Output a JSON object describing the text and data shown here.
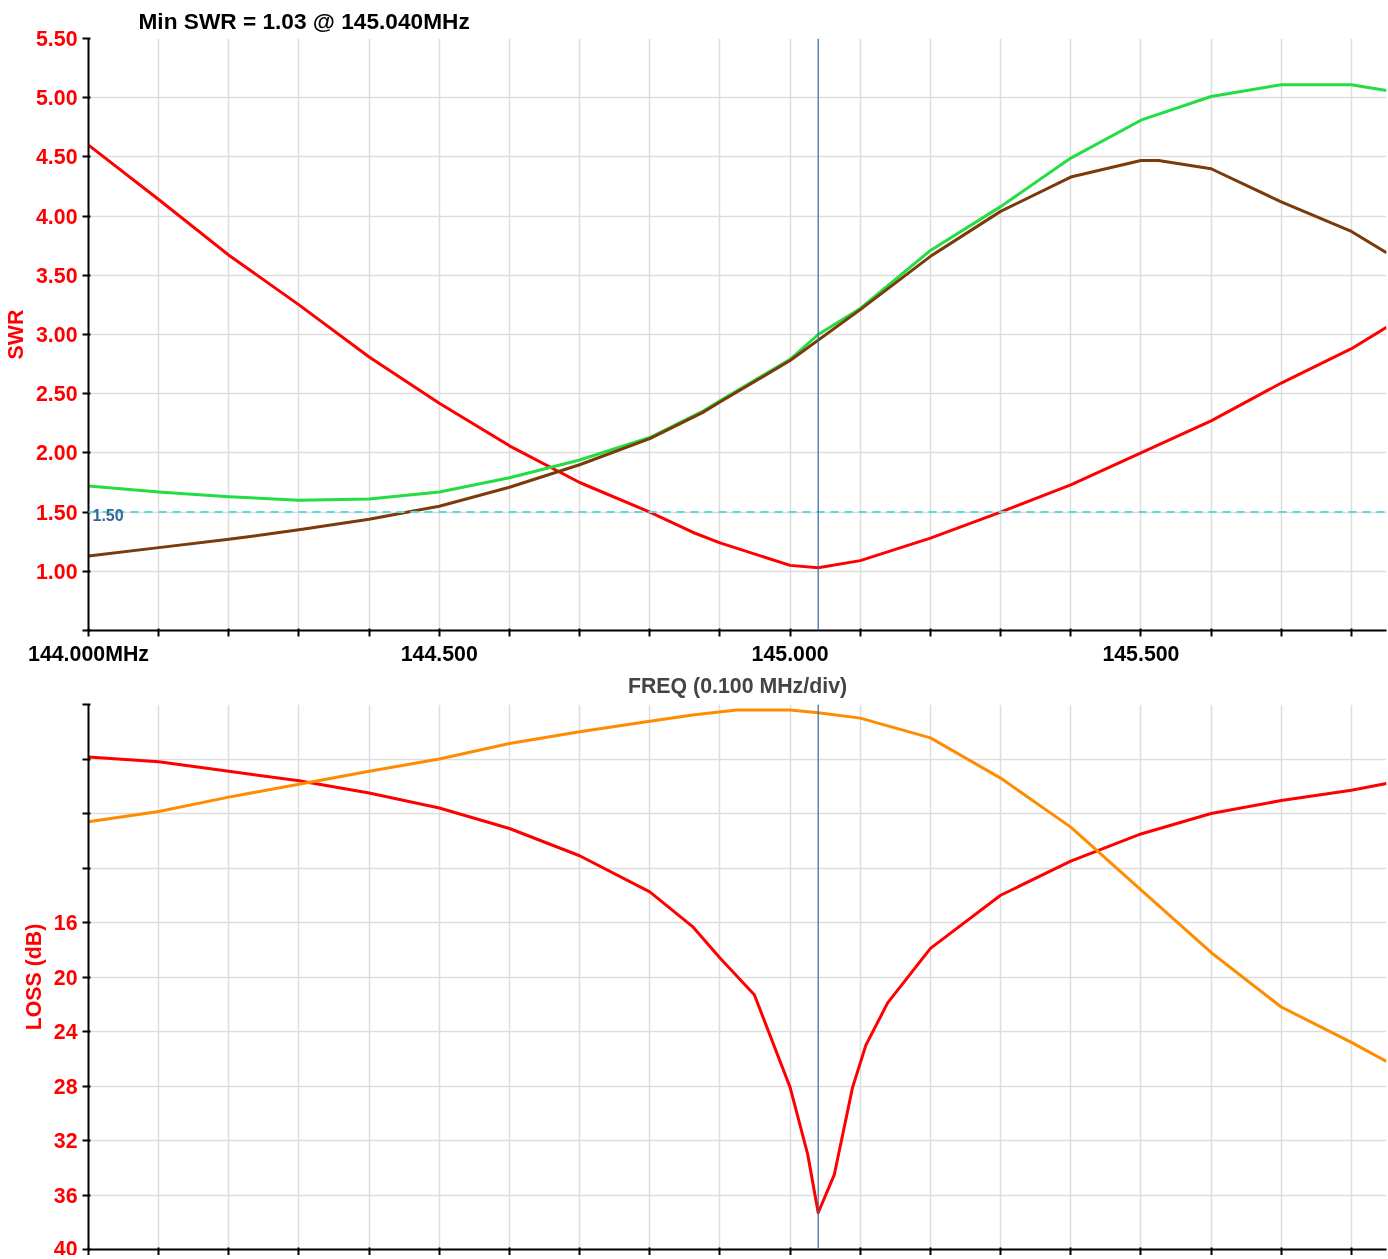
{
  "chart_data": [
    {
      "type": "line",
      "title": "Min SWR =   1.03 @ 145.040MHz",
      "ylabel": "SWR",
      "xlabel": "FREQ (0.100 MHz/div)",
      "xlim": [
        144.0,
        145.85
      ],
      "ylim": [
        0.5,
        5.5
      ],
      "xticks": [
        {
          "value": 144.0,
          "label": "144.000MHz"
        },
        {
          "value": 144.1,
          "label": null
        },
        {
          "value": 144.2,
          "label": null
        },
        {
          "value": 144.3,
          "label": null
        },
        {
          "value": 144.4,
          "label": null
        },
        {
          "value": 144.5,
          "label": "144.500"
        },
        {
          "value": 144.6,
          "label": null
        },
        {
          "value": 144.7,
          "label": null
        },
        {
          "value": 144.8,
          "label": null
        },
        {
          "value": 144.9,
          "label": null
        },
        {
          "value": 145.0,
          "label": "145.000"
        },
        {
          "value": 145.1,
          "label": null
        },
        {
          "value": 145.2,
          "label": null
        },
        {
          "value": 145.3,
          "label": null
        },
        {
          "value": 145.4,
          "label": null
        },
        {
          "value": 145.5,
          "label": "145.500"
        },
        {
          "value": 145.6,
          "label": null
        },
        {
          "value": 145.7,
          "label": null
        },
        {
          "value": 145.8,
          "label": null
        }
      ],
      "yticks": [
        {
          "value": 0.5,
          "label": null
        },
        {
          "value": 1.0,
          "label": "1.00"
        },
        {
          "value": 1.5,
          "label": "1.50"
        },
        {
          "value": 2.0,
          "label": "2.00"
        },
        {
          "value": 2.5,
          "label": "2.50"
        },
        {
          "value": 3.0,
          "label": "3.00"
        },
        {
          "value": 3.5,
          "label": "3.50"
        },
        {
          "value": 4.0,
          "label": "4.00"
        },
        {
          "value": 4.5,
          "label": "4.50"
        },
        {
          "value": 5.0,
          "label": "5.00"
        },
        {
          "value": 5.5,
          "label": "5.50"
        }
      ],
      "grid": true,
      "line_style": "solid",
      "marker": "none",
      "ref_lines": [
        {
          "axis": "y",
          "value": 1.5,
          "label": "1.50",
          "color": "#55dddd",
          "line_style": "dashed"
        },
        {
          "axis": "x",
          "value": 145.04,
          "label": null,
          "color": "#336699",
          "line_style": "solid"
        }
      ],
      "series": [
        {
          "color": "#ff0000",
          "x": [
            144.0,
            144.1,
            144.2,
            144.3,
            144.4,
            144.5,
            144.6,
            144.7,
            144.8,
            144.861,
            144.9,
            145.0,
            145.04,
            145.1,
            145.2,
            145.3,
            145.4,
            145.5,
            145.6,
            145.7,
            145.8,
            145.85
          ],
          "values": [
            4.6,
            4.14,
            3.67,
            3.25,
            2.81,
            2.42,
            2.06,
            1.75,
            1.5,
            1.33,
            1.24,
            1.05,
            1.03,
            1.09,
            1.28,
            1.5,
            1.73,
            2.0,
            2.27,
            2.59,
            2.88,
            3.06
          ]
        },
        {
          "color": "#22dd44",
          "x": [
            144.0,
            144.1,
            144.2,
            144.3,
            144.4,
            144.5,
            144.6,
            144.7,
            144.8,
            144.875,
            144.9,
            145.0,
            145.04,
            145.1,
            145.2,
            145.3,
            145.4,
            145.5,
            145.6,
            145.7,
            145.8,
            145.85
          ],
          "values": [
            1.72,
            1.67,
            1.63,
            1.6,
            1.61,
            1.67,
            1.79,
            1.94,
            2.13,
            2.35,
            2.44,
            2.79,
            3.0,
            3.22,
            3.71,
            4.08,
            4.49,
            4.81,
            5.01,
            5.11,
            5.11,
            5.06
          ]
        },
        {
          "color": "#7a3a0a",
          "x": [
            144.0,
            144.1,
            144.2,
            144.3,
            144.4,
            144.5,
            144.6,
            144.7,
            144.8,
            144.875,
            144.9,
            145.0,
            145.1,
            145.2,
            145.3,
            145.4,
            145.5,
            145.525,
            145.6,
            145.7,
            145.8,
            145.85
          ],
          "values": [
            1.13,
            1.2,
            1.27,
            1.35,
            1.44,
            1.55,
            1.71,
            1.9,
            2.12,
            2.34,
            2.43,
            2.78,
            3.21,
            3.66,
            4.04,
            4.33,
            4.47,
            4.47,
            4.4,
            4.12,
            3.87,
            3.69
          ]
        }
      ]
    },
    {
      "type": "line",
      "ylabel": "LOSS (dB)",
      "tick_labels": "y",
      "xlim": [
        144.0,
        145.85
      ],
      "ylim": [
        40,
        0
      ],
      "xticks": [
        144.0,
        144.1,
        144.2,
        144.3,
        144.4,
        144.5,
        144.6,
        144.7,
        144.8,
        144.9,
        145.0,
        145.1,
        145.2,
        145.3,
        145.4,
        145.5,
        145.6,
        145.7,
        145.8
      ],
      "yticks": [
        {
          "value": 0,
          "label": null
        },
        {
          "value": 4,
          "label": null
        },
        {
          "value": 8,
          "label": null
        },
        {
          "value": 12,
          "label": null
        },
        16,
        20,
        24,
        28,
        32,
        36,
        40
      ],
      "grid": true,
      "line_style": "solid",
      "marker": "none",
      "ref_lines": [
        {
          "axis": "x",
          "value": 145.04,
          "label": null,
          "color": "#336699",
          "line_style": "solid"
        }
      ],
      "series": [
        {
          "color": "#ff0000",
          "x": [
            144.0,
            144.1,
            144.2,
            144.3,
            144.4,
            144.5,
            144.6,
            144.7,
            144.8,
            144.861,
            144.9,
            144.949,
            145.0,
            145.025,
            145.04,
            145.063,
            145.089,
            145.108,
            145.139,
            145.2,
            145.3,
            145.4,
            145.5,
            145.6,
            145.7,
            145.8,
            145.85
          ],
          "values": [
            3.85,
            4.2,
            4.9,
            5.6,
            6.5,
            7.6,
            9.1,
            11.1,
            13.75,
            16.3,
            18.6,
            21.3,
            28.1,
            33.0,
            37.3,
            34.5,
            28.1,
            25.0,
            21.9,
            17.9,
            14.0,
            11.5,
            9.5,
            8.0,
            7.05,
            6.3,
            5.8
          ]
        },
        {
          "color": "#ff8c00",
          "x": [
            144.0,
            144.1,
            144.2,
            144.3,
            144.4,
            144.5,
            144.6,
            144.7,
            144.8,
            144.861,
            144.924,
            145.0,
            145.04,
            145.1,
            145.2,
            145.3,
            145.4,
            145.5,
            145.6,
            145.7,
            145.8,
            145.85
          ],
          "values": [
            8.6,
            7.85,
            6.8,
            5.85,
            4.9,
            4.0,
            2.86,
            2.0,
            1.23,
            0.77,
            0.4,
            0.4,
            0.6,
            1.0,
            2.45,
            5.4,
            9.0,
            13.6,
            18.2,
            22.2,
            24.8,
            26.2
          ]
        }
      ]
    }
  ]
}
